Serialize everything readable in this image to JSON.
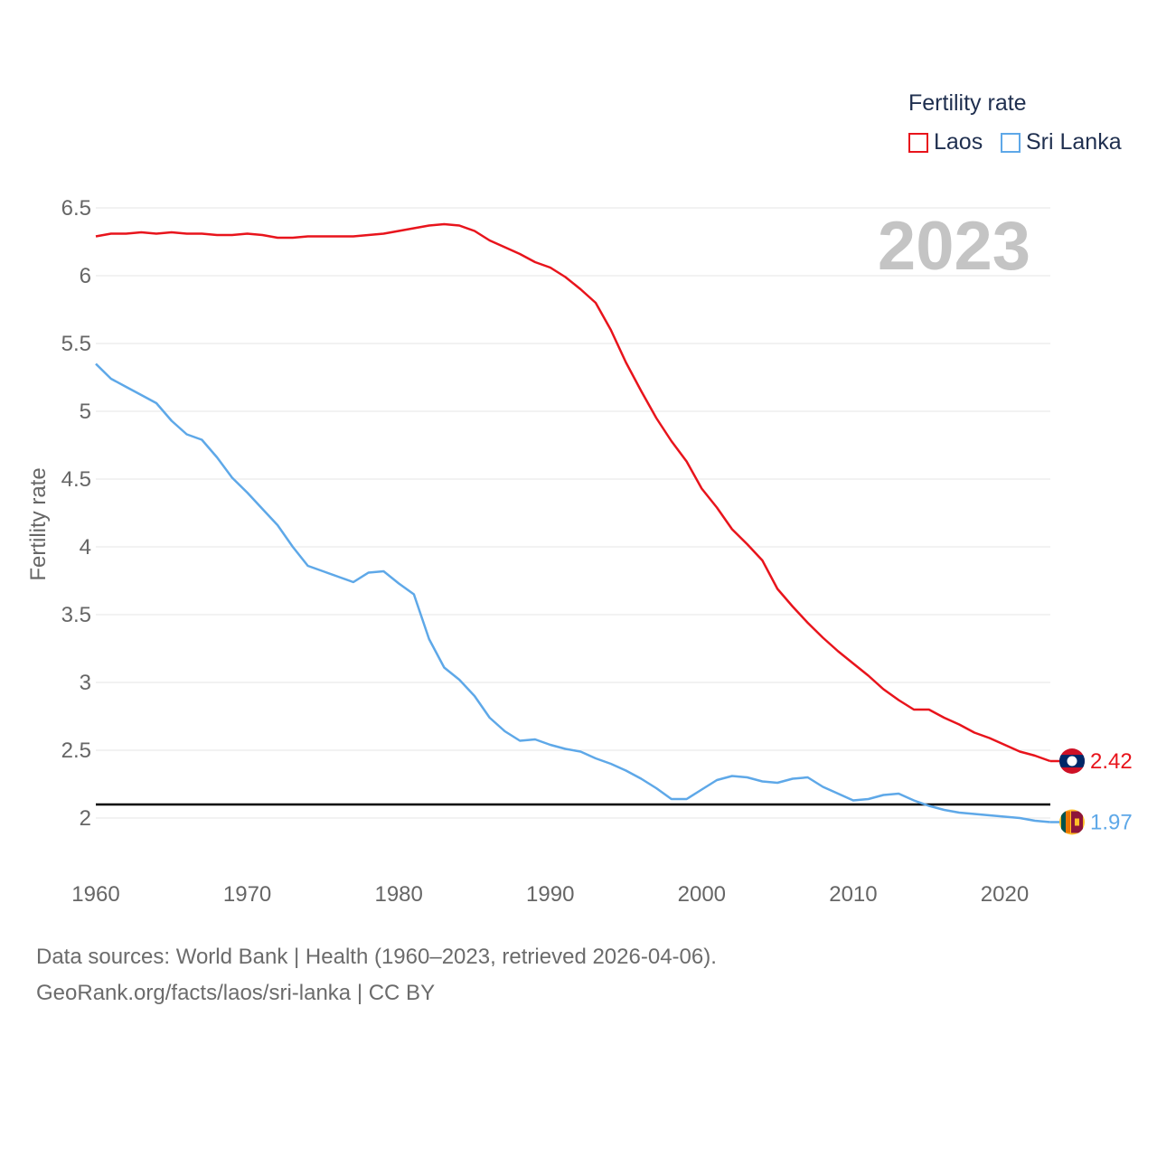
{
  "chart_data": {
    "type": "line",
    "title": "",
    "legend_title": "Fertility rate",
    "ylabel": "Fertility rate",
    "xlabel": "",
    "year_label": "2023",
    "ylim": [
      1.9,
      6.5
    ],
    "xlim": [
      1960,
      2023
    ],
    "yticks": [
      2,
      2.5,
      3,
      3.5,
      4,
      4.5,
      5,
      5.5,
      6,
      6.5
    ],
    "ytick_labels": [
      "2",
      "2.5",
      "3",
      "3.5",
      "4",
      "4.5",
      "5",
      "5.5",
      "6",
      "6.5"
    ],
    "xticks": [
      1960,
      1970,
      1980,
      1990,
      2000,
      2010,
      2020
    ],
    "xtick_labels": [
      "1960",
      "1970",
      "1980",
      "1990",
      "2000",
      "2010",
      "2020"
    ],
    "reference_line": 2.1,
    "years": [
      1960,
      1961,
      1962,
      1963,
      1964,
      1965,
      1966,
      1967,
      1968,
      1969,
      1970,
      1971,
      1972,
      1973,
      1974,
      1975,
      1976,
      1977,
      1978,
      1979,
      1980,
      1981,
      1982,
      1983,
      1984,
      1985,
      1986,
      1987,
      1988,
      1989,
      1990,
      1991,
      1992,
      1993,
      1994,
      1995,
      1996,
      1997,
      1998,
      1999,
      2000,
      2001,
      2002,
      2003,
      2004,
      2005,
      2006,
      2007,
      2008,
      2009,
      2010,
      2011,
      2012,
      2013,
      2014,
      2015,
      2016,
      2017,
      2018,
      2019,
      2020,
      2021,
      2022,
      2023
    ],
    "series": [
      {
        "name": "Laos",
        "color": "#e8141c",
        "end_label": "2.42",
        "values": [
          6.29,
          6.31,
          6.31,
          6.32,
          6.31,
          6.32,
          6.31,
          6.31,
          6.3,
          6.3,
          6.31,
          6.3,
          6.28,
          6.28,
          6.29,
          6.29,
          6.29,
          6.29,
          6.3,
          6.31,
          6.33,
          6.35,
          6.37,
          6.38,
          6.37,
          6.33,
          6.26,
          6.21,
          6.16,
          6.1,
          6.06,
          5.99,
          5.9,
          5.8,
          5.6,
          5.36,
          5.15,
          4.95,
          4.78,
          4.63,
          4.43,
          4.29,
          4.13,
          4.02,
          3.9,
          3.69,
          3.56,
          3.44,
          3.33,
          3.23,
          3.14,
          3.05,
          2.95,
          2.87,
          2.8,
          2.8,
          2.74,
          2.69,
          2.63,
          2.59,
          2.54,
          2.49,
          2.46,
          2.42
        ]
      },
      {
        "name": "Sri Lanka",
        "color": "#5ea8e8",
        "end_label": "1.97",
        "values": [
          5.35,
          5.24,
          5.18,
          5.12,
          5.06,
          4.93,
          4.83,
          4.79,
          4.66,
          4.51,
          4.4,
          4.28,
          4.16,
          4.0,
          3.86,
          3.82,
          3.78,
          3.74,
          3.81,
          3.82,
          3.73,
          3.65,
          3.32,
          3.11,
          3.02,
          2.9,
          2.74,
          2.64,
          2.57,
          2.58,
          2.54,
          2.51,
          2.49,
          2.44,
          2.4,
          2.35,
          2.29,
          2.22,
          2.14,
          2.14,
          2.21,
          2.28,
          2.31,
          2.3,
          2.27,
          2.26,
          2.29,
          2.3,
          2.23,
          2.18,
          2.13,
          2.14,
          2.17,
          2.18,
          2.13,
          2.09,
          2.06,
          2.04,
          2.03,
          2.02,
          2.01,
          2.0,
          1.98,
          1.97
        ]
      }
    ]
  },
  "footer": {
    "line1": "Data sources: World Bank | Health (1960–2023, retrieved 2026-04-06).",
    "line2": "GeoRank.org/facts/laos/sri-lanka | CC BY"
  },
  "colors": {
    "grid": "#e6e6e6",
    "axis_text": "#666666",
    "year_label": "#c4c4c4",
    "reference": "#000000"
  }
}
